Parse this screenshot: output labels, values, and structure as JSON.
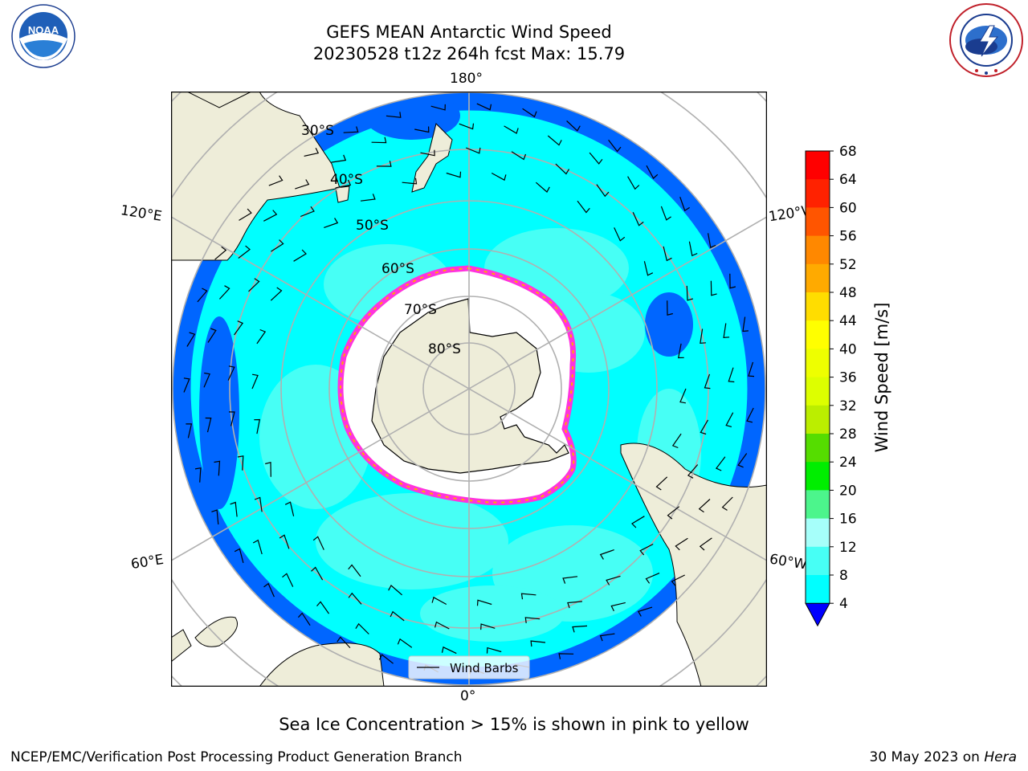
{
  "title": {
    "line1": "GEFS MEAN Antarctic Wind Speed",
    "line2": "20230528 t12z 264h fcst   Max: 15.79"
  },
  "logos": {
    "left": {
      "icon": "noaa-logo-icon",
      "text": "NOAA",
      "ring_text": "NATIONAL OCEANIC AND ATMOSPHERIC ADMINISTRATION · U.S. DEPARTMENT OF COMMERCE"
    },
    "right": {
      "icon": "nws-logo-icon",
      "ring_text": "NATIONAL WEATHER SERVICE"
    }
  },
  "map": {
    "projection": "south-polar-stereographic",
    "longitude_labels": {
      "top": "180°",
      "left_upper": "120°E",
      "right_upper": "120°W",
      "left_lower": "60°E",
      "right_lower": "60°W",
      "bottom": "0°"
    },
    "latitude_labels": [
      "30°S",
      "40°S",
      "50°S",
      "60°S",
      "70°S",
      "80°S"
    ],
    "legend_label": "Wind Barbs",
    "colors": {
      "land": "#eeedd9",
      "ice_free_ocean_bg": "#00ffff",
      "sea_ice_edge": [
        "#ff33dd",
        "#ffaa00",
        "#ffee00"
      ],
      "graticule": "#b0b0b0"
    }
  },
  "colorbar": {
    "label": "Wind Speed [m/s]",
    "ticks": [
      "4",
      "8",
      "12",
      "16",
      "20",
      "24",
      "28",
      "32",
      "36",
      "40",
      "44",
      "48",
      "52",
      "56",
      "60",
      "64",
      "68"
    ],
    "colors": [
      "#0066ff",
      "#00ffff",
      "#47fff5",
      "#a6fffa",
      "#4cf58c",
      "#00ee00",
      "#55dd00",
      "#bbee00",
      "#ddff00",
      "#eeff00",
      "#ffff00",
      "#ffdd00",
      "#ffaa00",
      "#ff8800",
      "#ff5500",
      "#ff2200",
      "#ff0000"
    ],
    "extend_min_color": "#0000ff"
  },
  "caption": "Sea Ice Concentration > 15% is shown in pink to yellow",
  "footer": {
    "left": "NCEP/EMC/Verification Post Processing Product Generation Branch",
    "right_date": "30 May 2023 on ",
    "right_system": "Hera"
  }
}
